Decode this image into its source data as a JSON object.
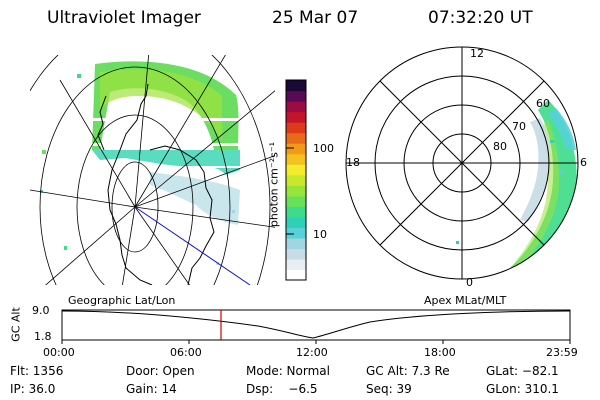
{
  "header": {
    "instrument": "Ultraviolet Imager",
    "date": "25 Mar 07",
    "time": "07:32:20 UT"
  },
  "colorbar": {
    "label": "photon cm⁻²s⁻¹",
    "ticks": [
      "100",
      "10"
    ],
    "colors": [
      "#ffffff",
      "#e8eef2",
      "#c7dce4",
      "#9fd6e0",
      "#57d2d8",
      "#2fd0b8",
      "#3bdc8a",
      "#66e25a",
      "#99e43a",
      "#c9e82c",
      "#f2ec2a",
      "#f3c21f",
      "#f09a18",
      "#e86b1a",
      "#de3a1a",
      "#c4142a",
      "#9a0c43",
      "#5a0a55",
      "#1a0838"
    ]
  },
  "left_panel": {
    "caption": "Geographic Lat/Lon"
  },
  "right_panel": {
    "caption": "Apex MLat/MLT",
    "mlt_labels": [
      "12",
      "18",
      "6",
      "0"
    ],
    "lat_labels": [
      "60",
      "70",
      "80"
    ]
  },
  "timeline": {
    "y_label": "GC Alt",
    "y_ticks": [
      "9.0",
      "1.8"
    ],
    "x_ticks": [
      "00:00",
      "06:00",
      "12:00",
      "18:00",
      "23:59"
    ],
    "marker_color": "#d00000"
  },
  "status": {
    "row1": [
      {
        "label": "Flt: 1356"
      },
      {
        "label": "Door: Open"
      },
      {
        "label": "Mode: Normal"
      },
      {
        "label": "GC Alt: 7.3 Re"
      },
      {
        "label": "GLat: −82.1"
      }
    ],
    "row2": [
      {
        "label": "IP: 36.0"
      },
      {
        "label": "Gain: 14"
      },
      {
        "label": "Dsp:    −6.5"
      },
      {
        "label": "Seq: 39"
      },
      {
        "label": "GLon: 310.1"
      }
    ]
  }
}
